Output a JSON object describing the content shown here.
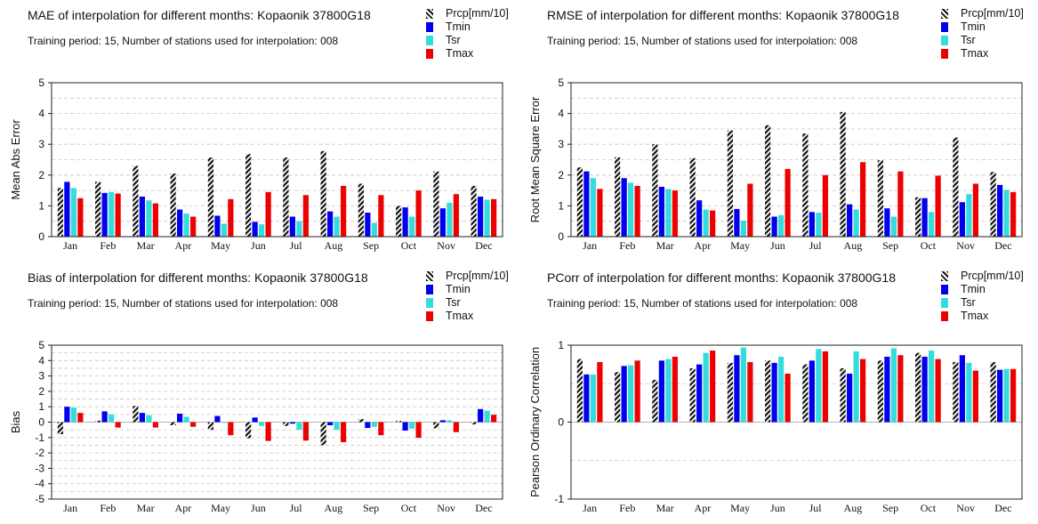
{
  "legend_colors": {
    "Tmin": "#0000ee",
    "Tsr": "#33dddd",
    "Tmax": "#ee0000",
    "Prcp": "hatch"
  },
  "chart_data": [
    {
      "type": "bar",
      "title": "MAE of interpolation for different months: Kopaonik  37800G18",
      "subtitle": "Training period: 15, Number of stations used for interpolation: 008",
      "ylabel": "Mean Abs Error",
      "ylim": [
        0,
        5
      ],
      "yticks": [
        "0",
        "1",
        "2",
        "3",
        "4",
        "5"
      ],
      "ytick_values": [
        0,
        1,
        2,
        3,
        4,
        5
      ],
      "grid_values": [
        0.5,
        1,
        1.5,
        2,
        2.5,
        3,
        3.5,
        4,
        4.5
      ],
      "legend_position": "top-right",
      "categories": [
        "Jan",
        "Feb",
        "Mar",
        "Apr",
        "May",
        "Jun",
        "Jul",
        "Aug",
        "Sep",
        "Oct",
        "Nov",
        "Dec"
      ],
      "series": [
        {
          "name": "Prcp[mm/10]",
          "values": [
            1.58,
            1.78,
            2.3,
            2.05,
            2.57,
            2.68,
            2.57,
            2.78,
            1.72,
            1.0,
            2.12,
            1.65
          ]
        },
        {
          "name": "Tmin",
          "values": [
            1.78,
            1.42,
            1.3,
            0.88,
            0.68,
            0.48,
            0.65,
            0.82,
            0.78,
            0.95,
            0.92,
            1.3
          ]
        },
        {
          "name": "Tsr",
          "values": [
            1.58,
            1.45,
            1.18,
            0.75,
            0.42,
            0.4,
            0.5,
            0.65,
            0.45,
            0.65,
            1.1,
            1.2
          ]
        },
        {
          "name": "Tmax",
          "values": [
            1.25,
            1.4,
            1.08,
            0.65,
            1.22,
            1.45,
            1.35,
            1.65,
            1.35,
            1.5,
            1.38,
            1.22
          ]
        }
      ]
    },
    {
      "type": "bar",
      "title": "RMSE of interpolation for different months: Kopaonik  37800G18",
      "subtitle": "Training period: 15, Number of stations used for interpolation: 008",
      "ylabel": "Root Mean Square Error",
      "ylim": [
        0,
        5
      ],
      "yticks": [
        "0",
        "1",
        "2",
        "3",
        "4",
        "5"
      ],
      "ytick_values": [
        0,
        1,
        2,
        3,
        4,
        5
      ],
      "grid_values": [
        0.5,
        1,
        1.5,
        2,
        2.5,
        3,
        3.5,
        4,
        4.5
      ],
      "legend_position": "top-right",
      "categories": [
        "Jan",
        "Feb",
        "Mar",
        "Apr",
        "May",
        "Jun",
        "Jul",
        "Aug",
        "Sep",
        "Oct",
        "Nov",
        "Dec"
      ],
      "series": [
        {
          "name": "Prcp[mm/10]",
          "values": [
            2.25,
            2.58,
            3.0,
            2.55,
            3.45,
            3.62,
            3.35,
            4.05,
            2.48,
            1.28,
            3.22,
            2.1
          ]
        },
        {
          "name": "Tmin",
          "values": [
            2.12,
            1.9,
            1.62,
            1.18,
            0.9,
            0.65,
            0.8,
            1.05,
            0.92,
            1.25,
            1.12,
            1.68
          ]
        },
        {
          "name": "Tsr",
          "values": [
            1.9,
            1.75,
            1.55,
            0.88,
            0.52,
            0.7,
            0.78,
            0.88,
            0.65,
            0.8,
            1.38,
            1.52
          ]
        },
        {
          "name": "Tmax",
          "values": [
            1.55,
            1.65,
            1.5,
            0.85,
            1.72,
            2.2,
            2.0,
            2.42,
            2.12,
            1.98,
            1.72,
            1.45
          ]
        }
      ]
    },
    {
      "type": "bar",
      "title": "Bias of interpolation for different months: Kopaonik  37800G18",
      "subtitle": "Training period: 15, Number of stations used for interpolation: 008",
      "ylabel": "Bias",
      "ylim": [
        -5,
        5
      ],
      "yticks": [
        "-5",
        "-4",
        "-3",
        "-2",
        "-1",
        "0",
        "1",
        "2",
        "3",
        "4",
        "5"
      ],
      "ytick_values": [
        -5,
        -4,
        -3,
        -2,
        -1,
        0,
        1,
        2,
        3,
        4,
        5
      ],
      "grid_values": [
        -4.5,
        -4,
        -3.5,
        -3,
        -2.5,
        -2,
        -1.5,
        -1,
        -0.5,
        0.5,
        1,
        1.5,
        2,
        2.5,
        3,
        3.5,
        4,
        4.5
      ],
      "legend_position": "top-right",
      "categories": [
        "Jan",
        "Feb",
        "Mar",
        "Apr",
        "May",
        "Jun",
        "Jul",
        "Aug",
        "Sep",
        "Oct",
        "Nov",
        "Dec"
      ],
      "series": [
        {
          "name": "Prcp[mm/10]",
          "values": [
            -0.78,
            0.1,
            1.05,
            -0.2,
            -0.5,
            -1.05,
            -0.25,
            -1.5,
            0.2,
            0.08,
            -0.4,
            -0.15
          ]
        },
        {
          "name": "Tmin",
          "values": [
            1.0,
            0.7,
            0.6,
            0.55,
            0.4,
            0.3,
            -0.1,
            -0.2,
            -0.38,
            -0.55,
            0.12,
            0.85
          ]
        },
        {
          "name": "Tsr",
          "values": [
            0.95,
            0.5,
            0.45,
            0.35,
            -0.05,
            -0.25,
            -0.5,
            -0.5,
            -0.3,
            -0.42,
            0.12,
            0.75
          ]
        },
        {
          "name": "Tmax",
          "values": [
            0.6,
            -0.35,
            -0.35,
            -0.3,
            -0.85,
            -1.22,
            -1.2,
            -1.3,
            -0.85,
            -1.02,
            -0.65,
            0.48
          ]
        }
      ]
    },
    {
      "type": "bar",
      "title": "PCorr of interpolation for different months: Kopaonik  37800G18",
      "subtitle": "Training period: 15, Number of stations used for interpolation: 008",
      "ylabel": "Pearson Ordinary Correlation",
      "ylim": [
        -1,
        1
      ],
      "yticks": [
        "-1",
        "0",
        "1"
      ],
      "ytick_values": [
        -1,
        0,
        1
      ],
      "grid_values": [
        -0.5,
        0.5
      ],
      "legend_position": "top-right",
      "categories": [
        "Jan",
        "Feb",
        "Mar",
        "Apr",
        "May",
        "Jun",
        "Jul",
        "Aug",
        "Sep",
        "Oct",
        "Nov",
        "Dec"
      ],
      "series": [
        {
          "name": "Prcp[mm/10]",
          "values": [
            0.82,
            0.65,
            0.55,
            0.7,
            0.77,
            0.8,
            0.75,
            0.7,
            0.8,
            0.9,
            0.78,
            0.78
          ]
        },
        {
          "name": "Tmin",
          "values": [
            0.62,
            0.73,
            0.8,
            0.75,
            0.87,
            0.77,
            0.8,
            0.63,
            0.85,
            0.85,
            0.87,
            0.68
          ]
        },
        {
          "name": "Tsr",
          "values": [
            0.62,
            0.74,
            0.82,
            0.9,
            0.97,
            0.85,
            0.95,
            0.92,
            0.96,
            0.93,
            0.77,
            0.69
          ]
        },
        {
          "name": "Tmax",
          "values": [
            0.78,
            0.8,
            0.85,
            0.93,
            0.78,
            0.63,
            0.92,
            0.82,
            0.87,
            0.82,
            0.67,
            0.69
          ]
        }
      ]
    }
  ]
}
